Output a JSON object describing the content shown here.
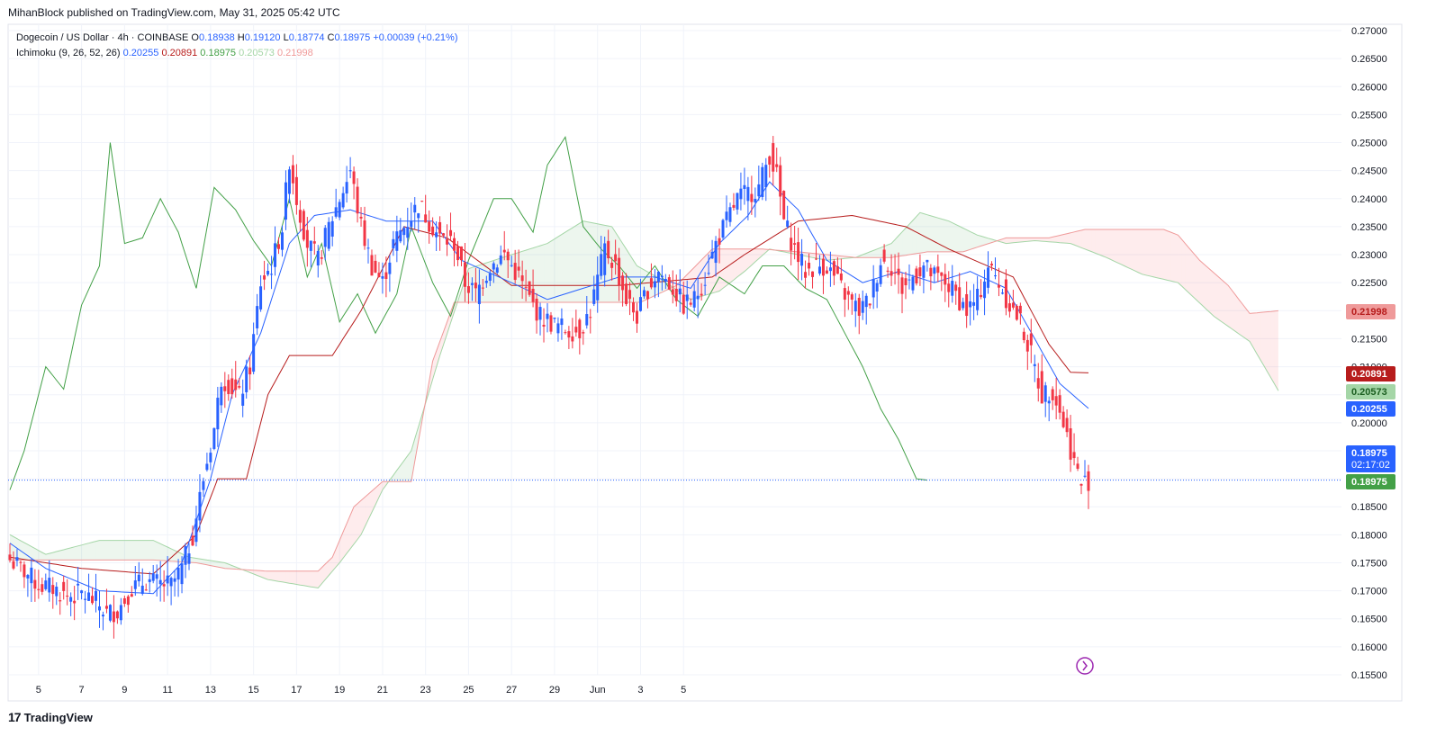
{
  "header": {
    "published": "MihanBlock published on TradingView.com, May 31, 2025 05:42 UTC"
  },
  "legend": {
    "symbol": "Dogecoin / US Dollar · 4h · COINBASE",
    "o_label": "O",
    "o_val": "0.18938",
    "h_label": "H",
    "h_val": "0.19120",
    "l_label": "L",
    "l_val": "0.18774",
    "c_label": "C",
    "c_val": "0.18975",
    "change": "+0.00039 (+0.21%)",
    "indicator": "Ichimoku (9, 26, 52, 26)",
    "ind_values": [
      "0.20255",
      "0.20891",
      "0.18975",
      "0.20573",
      "0.21998"
    ]
  },
  "footer": {
    "brand": "TradingView"
  },
  "colors": {
    "up": "#2962ff",
    "down": "#f23645",
    "tenkan": "#2962ff",
    "kijun": "#b71c1c",
    "chikou": "#43a047",
    "spanA": "#a5d6a7",
    "spanB": "#ef9a9a",
    "cloudGreen": "#43a04720",
    "cloudRed": "#f2364520"
  },
  "chart_data": {
    "type": "candlestick",
    "y_axis": {
      "range": [
        0.155,
        0.27
      ],
      "ticks": [
        "0.27000",
        "0.26500",
        "0.26000",
        "0.25500",
        "0.25000",
        "0.24500",
        "0.24000",
        "0.23500",
        "0.23000",
        "0.22500",
        "0.22000",
        "0.21500",
        "0.21000",
        "0.20500",
        "0.20000",
        "0.19500",
        "0.19000",
        "0.18500",
        "0.18000",
        "0.17500",
        "0.17000",
        "0.16500",
        "0.16000",
        "0.15500"
      ]
    },
    "x_axis": {
      "ticks": [
        "5",
        "7",
        "9",
        "11",
        "13",
        "15",
        "17",
        "19",
        "21",
        "23",
        "25",
        "27",
        "29",
        "Jun",
        "3",
        "5"
      ]
    },
    "price_labels": [
      {
        "value": 0.21998,
        "text": "0.21998",
        "color": "#ef9a9a",
        "text_color": "#b71c1c"
      },
      {
        "value": 0.20891,
        "text": "0.20891",
        "color": "#b71c1c",
        "text_color": "#ffffff"
      },
      {
        "value": 0.20573,
        "text": "0.20573",
        "color": "#a5d6a7",
        "text_color": "#1b5e20"
      },
      {
        "value": 0.20255,
        "text": "0.20255",
        "color": "#2962ff",
        "text_color": "#ffffff"
      },
      {
        "value": 0.18975,
        "text": "0.18975",
        "sub": "02:17:02",
        "color": "#2962ff",
        "text_color": "#ffffff"
      },
      {
        "value": 0.18975,
        "text": "0.18975",
        "color": "#43a047",
        "text_color": "#ffffff"
      }
    ],
    "current_price": 0.18975,
    "close_path": [
      [
        0,
        0.1755
      ],
      [
        4,
        0.1735
      ],
      [
        8,
        0.171
      ],
      [
        12,
        0.1705
      ],
      [
        16,
        0.169
      ],
      [
        20,
        0.1695
      ],
      [
        24,
        0.168
      ],
      [
        27,
        0.166
      ],
      [
        30,
        0.1665
      ],
      [
        34,
        0.1705
      ],
      [
        38,
        0.1718
      ],
      [
        42,
        0.1712
      ],
      [
        45,
        0.171
      ],
      [
        48,
        0.174
      ],
      [
        51,
        0.18
      ],
      [
        54,
        0.19
      ],
      [
        57,
        0.199
      ],
      [
        59,
        0.208
      ],
      [
        61,
        0.207
      ],
      [
        64,
        0.2045
      ],
      [
        67,
        0.21
      ],
      [
        70,
        0.225
      ],
      [
        73,
        0.228
      ],
      [
        76,
        0.235
      ],
      [
        78,
        0.247
      ],
      [
        80,
        0.24
      ],
      [
        83,
        0.232
      ],
      [
        86,
        0.229
      ],
      [
        89,
        0.235
      ],
      [
        92,
        0.24
      ],
      [
        95,
        0.245
      ],
      [
        98,
        0.235
      ],
      [
        101,
        0.228
      ],
      [
        104,
        0.225
      ],
      [
        107,
        0.232
      ],
      [
        110,
        0.235
      ],
      [
        114,
        0.239
      ],
      [
        117,
        0.236
      ],
      [
        120,
        0.233
      ],
      [
        124,
        0.232
      ],
      [
        127,
        0.225
      ],
      [
        130,
        0.223
      ],
      [
        134,
        0.228
      ],
      [
        138,
        0.23
      ],
      [
        142,
        0.226
      ],
      [
        145,
        0.222
      ],
      [
        148,
        0.219
      ],
      [
        152,
        0.2175
      ],
      [
        156,
        0.2165
      ],
      [
        159,
        0.2165
      ],
      [
        162,
        0.22
      ],
      [
        166,
        0.231
      ],
      [
        169,
        0.228
      ],
      [
        172,
        0.222
      ],
      [
        175,
        0.219
      ],
      [
        178,
        0.224
      ],
      [
        181,
        0.227
      ],
      [
        185,
        0.224
      ],
      [
        188,
        0.221
      ],
      [
        191,
        0.222
      ],
      [
        194,
        0.226
      ],
      [
        197,
        0.232
      ],
      [
        200,
        0.236
      ],
      [
        203,
        0.24
      ],
      [
        206,
        0.241
      ],
      [
        209,
        0.242
      ],
      [
        212,
        0.248
      ],
      [
        214,
        0.244
      ],
      [
        216,
        0.236
      ],
      [
        219,
        0.231
      ],
      [
        222,
        0.227
      ],
      [
        225,
        0.228
      ],
      [
        228,
        0.228
      ],
      [
        231,
        0.225
      ],
      [
        234,
        0.222
      ],
      [
        237,
        0.22
      ],
      [
        240,
        0.222
      ],
      [
        243,
        0.229
      ],
      [
        246,
        0.228
      ],
      [
        249,
        0.224
      ],
      [
        252,
        0.226
      ],
      [
        255,
        0.228
      ],
      [
        258,
        0.226
      ],
      [
        261,
        0.225
      ],
      [
        264,
        0.223
      ],
      [
        267,
        0.22
      ],
      [
        270,
        0.222
      ],
      [
        273,
        0.228
      ],
      [
        276,
        0.225
      ],
      [
        279,
        0.221
      ],
      [
        282,
        0.218
      ],
      [
        285,
        0.212
      ],
      [
        288,
        0.205
      ],
      [
        291,
        0.206
      ],
      [
        294,
        0.2
      ],
      [
        297,
        0.193
      ],
      [
        299,
        0.189
      ],
      [
        301,
        0.18975
      ]
    ],
    "candles_count": 302,
    "time_axis": {
      "first_label_index": 8,
      "bars_per_2days": 12
    },
    "ichimoku": {
      "tenkan": [
        [
          0,
          0.1785
        ],
        [
          10,
          0.174
        ],
        [
          25,
          0.17
        ],
        [
          40,
          0.1695
        ],
        [
          48,
          0.175
        ],
        [
          56,
          0.19
        ],
        [
          62,
          0.205
        ],
        [
          70,
          0.216
        ],
        [
          78,
          0.232
        ],
        [
          85,
          0.237
        ],
        [
          95,
          0.238
        ],
        [
          105,
          0.236
        ],
        [
          118,
          0.236
        ],
        [
          126,
          0.229
        ],
        [
          140,
          0.225
        ],
        [
          150,
          0.222
        ],
        [
          160,
          0.224
        ],
        [
          170,
          0.226
        ],
        [
          180,
          0.226
        ],
        [
          190,
          0.224
        ],
        [
          198,
          0.232
        ],
        [
          206,
          0.237
        ],
        [
          212,
          0.243
        ],
        [
          220,
          0.238
        ],
        [
          228,
          0.229
        ],
        [
          238,
          0.225
        ],
        [
          248,
          0.227
        ],
        [
          258,
          0.225
        ],
        [
          268,
          0.227
        ],
        [
          278,
          0.224
        ],
        [
          286,
          0.215
        ],
        [
          293,
          0.207
        ],
        [
          301,
          0.20255
        ]
      ],
      "kijun": [
        [
          0,
          0.176
        ],
        [
          20,
          0.174
        ],
        [
          40,
          0.173
        ],
        [
          52,
          0.18
        ],
        [
          58,
          0.19
        ],
        [
          66,
          0.19
        ],
        [
          72,
          0.205
        ],
        [
          78,
          0.212
        ],
        [
          90,
          0.212
        ],
        [
          98,
          0.22
        ],
        [
          110,
          0.235
        ],
        [
          122,
          0.233
        ],
        [
          140,
          0.2245
        ],
        [
          170,
          0.2245
        ],
        [
          196,
          0.226
        ],
        [
          205,
          0.23
        ],
        [
          220,
          0.236
        ],
        [
          235,
          0.237
        ],
        [
          250,
          0.235
        ],
        [
          262,
          0.231
        ],
        [
          280,
          0.226
        ],
        [
          290,
          0.214
        ],
        [
          296,
          0.209
        ],
        [
          301,
          0.20891
        ]
      ],
      "chikou": [
        [
          0,
          0.188
        ],
        [
          4,
          0.195
        ],
        [
          10,
          0.21
        ],
        [
          15,
          0.206
        ],
        [
          20,
          0.221
        ],
        [
          25,
          0.228
        ],
        [
          28,
          0.25
        ],
        [
          32,
          0.232
        ],
        [
          37,
          0.233
        ],
        [
          42,
          0.24
        ],
        [
          47,
          0.234
        ],
        [
          52,
          0.224
        ],
        [
          57,
          0.242
        ],
        [
          63,
          0.238
        ],
        [
          68,
          0.2325
        ],
        [
          73,
          0.228
        ],
        [
          78,
          0.24
        ],
        [
          83,
          0.226
        ],
        [
          87,
          0.232
        ],
        [
          92,
          0.218
        ],
        [
          97,
          0.223
        ],
        [
          102,
          0.216
        ],
        [
          108,
          0.223
        ],
        [
          112,
          0.235
        ],
        [
          118,
          0.225
        ],
        [
          123,
          0.219
        ],
        [
          128,
          0.229
        ],
        [
          135,
          0.24
        ],
        [
          140,
          0.24
        ],
        [
          146,
          0.234
        ],
        [
          150,
          0.246
        ],
        [
          155,
          0.251
        ],
        [
          160,
          0.235
        ],
        [
          165,
          0.231
        ],
        [
          170,
          0.228
        ],
        [
          175,
          0.224
        ],
        [
          180,
          0.228
        ],
        [
          186,
          0.222
        ],
        [
          192,
          0.219
        ],
        [
          198,
          0.226
        ],
        [
          205,
          0.223
        ],
        [
          210,
          0.228
        ],
        [
          216,
          0.228
        ],
        [
          222,
          0.224
        ],
        [
          228,
          0.222
        ],
        [
          233,
          0.216
        ],
        [
          238,
          0.21
        ],
        [
          243,
          0.2025
        ],
        [
          248,
          0.197
        ],
        [
          253,
          0.19
        ],
        [
          256,
          0.18975
        ]
      ],
      "spanA": [
        [
          0,
          0.18
        ],
        [
          10,
          0.1765
        ],
        [
          25,
          0.179
        ],
        [
          40,
          0.179
        ],
        [
          50,
          0.176
        ],
        [
          60,
          0.175
        ],
        [
          72,
          0.172
        ],
        [
          86,
          0.1705
        ],
        [
          92,
          0.175
        ],
        [
          98,
          0.18
        ],
        [
          104,
          0.188
        ],
        [
          112,
          0.195
        ],
        [
          120,
          0.212
        ],
        [
          128,
          0.2275
        ],
        [
          140,
          0.23
        ],
        [
          150,
          0.232
        ],
        [
          160,
          0.236
        ],
        [
          168,
          0.235
        ],
        [
          175,
          0.228
        ],
        [
          182,
          0.2255
        ],
        [
          190,
          0.222
        ],
        [
          198,
          0.2235
        ],
        [
          205,
          0.227
        ],
        [
          212,
          0.231
        ],
        [
          220,
          0.23
        ],
        [
          228,
          0.229
        ],
        [
          236,
          0.2295
        ],
        [
          246,
          0.232
        ],
        [
          254,
          0.2375
        ],
        [
          262,
          0.236
        ],
        [
          270,
          0.2335
        ],
        [
          278,
          0.232
        ],
        [
          286,
          0.2325
        ],
        [
          296,
          0.232
        ],
        [
          306,
          0.2295
        ],
        [
          316,
          0.2265
        ],
        [
          326,
          0.225
        ],
        [
          336,
          0.219
        ],
        [
          346,
          0.2145
        ],
        [
          354,
          0.20573
        ]
      ],
      "spanB": [
        [
          0,
          0.1755
        ],
        [
          20,
          0.1755
        ],
        [
          40,
          0.1755
        ],
        [
          52,
          0.175
        ],
        [
          60,
          0.174
        ],
        [
          72,
          0.1735
        ],
        [
          86,
          0.1735
        ],
        [
          90,
          0.176
        ],
        [
          96,
          0.185
        ],
        [
          104,
          0.1895
        ],
        [
          112,
          0.1895
        ],
        [
          118,
          0.211
        ],
        [
          124,
          0.2215
        ],
        [
          150,
          0.2215
        ],
        [
          176,
          0.2215
        ],
        [
          186,
          0.2245
        ],
        [
          196,
          0.231
        ],
        [
          210,
          0.231
        ],
        [
          220,
          0.2305
        ],
        [
          236,
          0.2295
        ],
        [
          246,
          0.2295
        ],
        [
          256,
          0.2305
        ],
        [
          266,
          0.2305
        ],
        [
          278,
          0.233
        ],
        [
          290,
          0.233
        ],
        [
          300,
          0.2345
        ],
        [
          314,
          0.2345
        ],
        [
          322,
          0.2345
        ],
        [
          326,
          0.2335
        ],
        [
          332,
          0.229
        ],
        [
          340,
          0.2245
        ],
        [
          346,
          0.2195
        ],
        [
          354,
          0.21998
        ]
      ]
    }
  }
}
